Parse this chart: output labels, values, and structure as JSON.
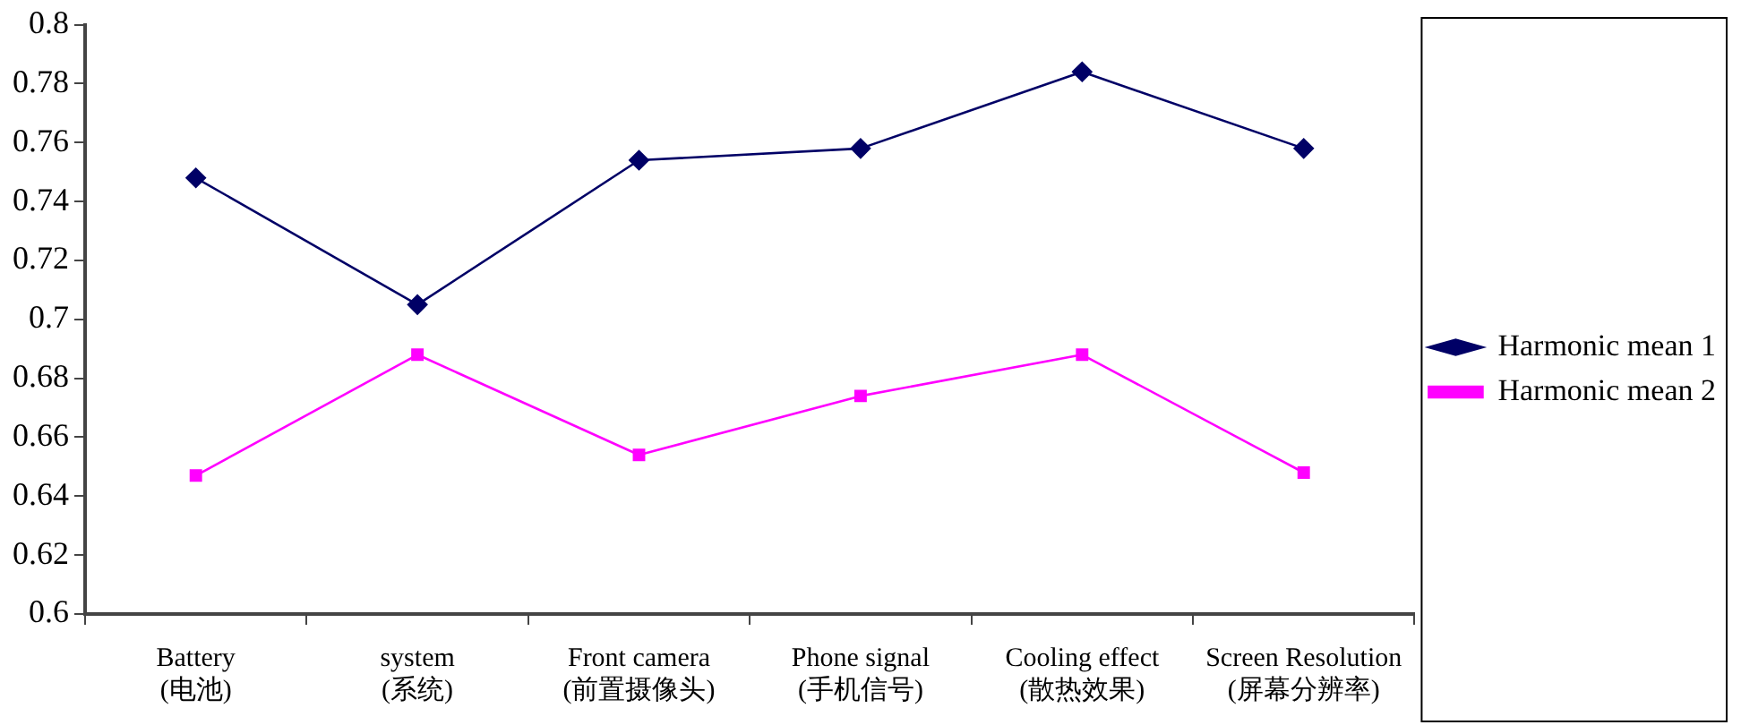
{
  "chart_data": {
    "type": "line",
    "categories": [
      "Battery\n(电池)",
      "system\n(系统)",
      "Front camera\n(前置摄像头)",
      "Phone signal\n(手机信号)",
      "Cooling effect\n(散热效果)",
      "Screen Resolution\n(屏幕分辨率)"
    ],
    "series": [
      {
        "name": "Harmonic mean 1",
        "color": "#000066",
        "marker": "diamond",
        "values": [
          0.748,
          0.705,
          0.754,
          0.758,
          0.784,
          0.758
        ]
      },
      {
        "name": "Harmonic mean 2",
        "color": "#ff00ff",
        "marker": "square",
        "values": [
          0.647,
          0.688,
          0.654,
          0.674,
          0.688,
          0.648
        ]
      }
    ],
    "ylim": [
      0.6,
      0.8
    ],
    "yticks": [
      0.6,
      0.62,
      0.64,
      0.66,
      0.68,
      0.7,
      0.72,
      0.74,
      0.76,
      0.78,
      0.8
    ],
    "grid": false,
    "legend": "right",
    "line_style": "solid"
  }
}
